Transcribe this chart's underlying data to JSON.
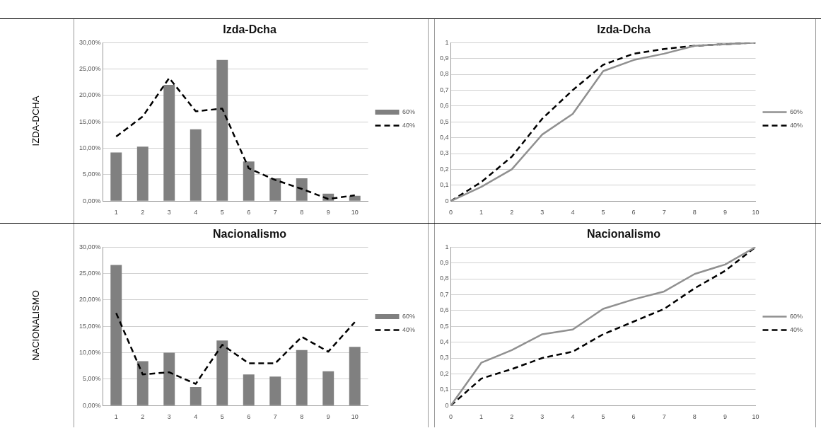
{
  "chart_data": [
    {
      "type": "bar",
      "title": "Izda-Dcha",
      "annotations": [
        "IZDA-DCHA"
      ],
      "categories": [
        "1",
        "2",
        "3",
        "4",
        "5",
        "6",
        "7",
        "8",
        "9",
        "10"
      ],
      "series": [
        {
          "name": "60%",
          "color": "#808080",
          "values": [
            9.2,
            10.3,
            22,
            13.6,
            26.7,
            7.5,
            4.3,
            4.3,
            1.4,
            1.0
          ]
        },
        {
          "name": "40%",
          "type": "line",
          "color": "#000000",
          "line_style": "dashed",
          "values": [
            12.2,
            16,
            23.3,
            17,
            17.5,
            6.2,
            4,
            2.3,
            0.4,
            1.1
          ]
        }
      ],
      "ylim": [
        0,
        30
      ],
      "yticks": [
        {
          "value": 0,
          "label": "0,00%"
        },
        {
          "value": 5,
          "label": "5,00%"
        },
        {
          "value": 10,
          "label": "10,00%"
        },
        {
          "value": 15,
          "label": "15,00%"
        },
        {
          "value": 20,
          "label": "20,00%"
        },
        {
          "value": 25,
          "label": "25,00%"
        },
        {
          "value": 30,
          "label": "30,00%"
        }
      ],
      "grid": "y",
      "legend": "right",
      "marker": "none"
    },
    {
      "type": "line",
      "title": "Izda-Dcha",
      "x": [
        0,
        1,
        2,
        3,
        4,
        5,
        6,
        7,
        8,
        9,
        10
      ],
      "series": [
        {
          "name": "60%",
          "color": "#909090",
          "line_style": "solid",
          "values": [
            0,
            0.09,
            0.2,
            0.42,
            0.55,
            0.82,
            0.89,
            0.93,
            0.98,
            0.99,
            1.0
          ]
        },
        {
          "name": "40%",
          "color": "#000000",
          "line_style": "dashed",
          "values": [
            0,
            0.12,
            0.28,
            0.52,
            0.7,
            0.86,
            0.93,
            0.96,
            0.98,
            0.99,
            1.0
          ]
        }
      ],
      "xlim": [
        0,
        10
      ],
      "xticks": [
        0,
        1,
        2,
        3,
        4,
        5,
        6,
        7,
        8,
        9,
        10
      ],
      "ylim": [
        0,
        1
      ],
      "yticks": [
        {
          "value": 0,
          "label": "0"
        },
        {
          "value": 0.1,
          "label": "0,1"
        },
        {
          "value": 0.2,
          "label": "0,2"
        },
        {
          "value": 0.3,
          "label": "0,3"
        },
        {
          "value": 0.4,
          "label": "0,4"
        },
        {
          "value": 0.5,
          "label": "0,5"
        },
        {
          "value": 0.6,
          "label": "0,6"
        },
        {
          "value": 0.7,
          "label": "0,7"
        },
        {
          "value": 0.8,
          "label": "0,8"
        },
        {
          "value": 0.9,
          "label": "0,9"
        },
        {
          "value": 1,
          "label": "1"
        }
      ],
      "grid": "y",
      "legend": "right",
      "marker": "none"
    },
    {
      "type": "bar",
      "title": "Nacionalismo",
      "annotations": [
        "NACIONALISMO"
      ],
      "categories": [
        "1",
        "2",
        "3",
        "4",
        "5",
        "6",
        "7",
        "8",
        "9",
        "10"
      ],
      "series": [
        {
          "name": "60%",
          "color": "#808080",
          "values": [
            26.6,
            8.4,
            10,
            3.5,
            12.3,
            5.9,
            5.5,
            10.5,
            6.5,
            11.1
          ]
        },
        {
          "name": "40%",
          "type": "line",
          "color": "#000000",
          "line_style": "dashed",
          "values": [
            17.5,
            5.9,
            6.3,
            4.1,
            11.5,
            8,
            8,
            13,
            10.2,
            15.8
          ]
        }
      ],
      "ylim": [
        0,
        30
      ],
      "yticks": [
        {
          "value": 0,
          "label": "0,00%"
        },
        {
          "value": 5,
          "label": "5,00%"
        },
        {
          "value": 10,
          "label": "10,00%"
        },
        {
          "value": 15,
          "label": "15,00%"
        },
        {
          "value": 20,
          "label": "20,00%"
        },
        {
          "value": 25,
          "label": "25,00%"
        },
        {
          "value": 30,
          "label": "30,00%"
        }
      ],
      "grid": "y",
      "legend": "right",
      "marker": "none"
    },
    {
      "type": "line",
      "title": "Nacionalismo",
      "x": [
        0,
        1,
        2,
        3,
        4,
        5,
        6,
        7,
        8,
        9,
        10
      ],
      "series": [
        {
          "name": "60%",
          "color": "#909090",
          "line_style": "solid",
          "values": [
            0,
            0.27,
            0.35,
            0.45,
            0.48,
            0.61,
            0.67,
            0.72,
            0.83,
            0.89,
            1.0
          ]
        },
        {
          "name": "40%",
          "color": "#000000",
          "line_style": "dashed",
          "values": [
            0,
            0.17,
            0.23,
            0.3,
            0.34,
            0.45,
            0.53,
            0.61,
            0.74,
            0.85,
            1.0
          ]
        }
      ],
      "xlim": [
        0,
        10
      ],
      "xticks": [
        0,
        1,
        2,
        3,
        4,
        5,
        6,
        7,
        8,
        9,
        10
      ],
      "ylim": [
        0,
        1
      ],
      "yticks": [
        {
          "value": 0,
          "label": "0"
        },
        {
          "value": 0.1,
          "label": "0,1"
        },
        {
          "value": 0.2,
          "label": "0,2"
        },
        {
          "value": 0.3,
          "label": "0,3"
        },
        {
          "value": 0.4,
          "label": "0,4"
        },
        {
          "value": 0.5,
          "label": "0,5"
        },
        {
          "value": 0.6,
          "label": "0,6"
        },
        {
          "value": 0.7,
          "label": "0,7"
        },
        {
          "value": 0.8,
          "label": "0,8"
        },
        {
          "value": 0.9,
          "label": "0,9"
        },
        {
          "value": 1,
          "label": "1"
        }
      ],
      "grid": "y",
      "legend": "right",
      "marker": "none"
    }
  ]
}
